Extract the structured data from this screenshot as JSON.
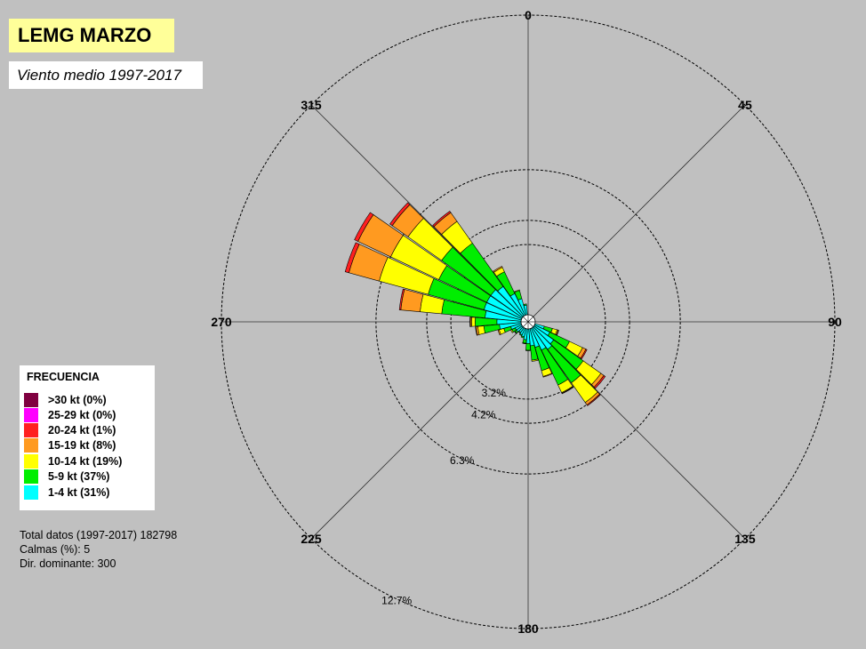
{
  "title": "LEMG MARZO",
  "subtitle": "Viento medio 1997-2017",
  "stats": {
    "total": "Total datos (1997-2017) 182798",
    "calms": "Calmas (%): 5",
    "dominant": "Dir. dominante:  300"
  },
  "legend": {
    "title": "FRECUENCIA",
    "items": [
      {
        "label": ">30 kt (0%)",
        "color": "#800040"
      },
      {
        "label": "25-29 kt (0%)",
        "color": "#ff00ff"
      },
      {
        "label": "20-24 kt (1%)",
        "color": "#ff2020"
      },
      {
        "label": "15-19 kt (8%)",
        "color": "#ff9a20"
      },
      {
        "label": "10-14 kt (19%)",
        "color": "#ffff00"
      },
      {
        "label": "5-9 kt (37%)",
        "color": "#00ee00"
      },
      {
        "label": "1-4 kt (31%)",
        "color": "#00ffff"
      }
    ]
  },
  "chart_data": {
    "type": "wind-rose",
    "title": "LEMG MARZO",
    "subtitle": "Viento medio 1997-2017",
    "direction_labels": [
      {
        "angle": 0,
        "label": "0"
      },
      {
        "angle": 45,
        "label": "45"
      },
      {
        "angle": 90,
        "label": "90"
      },
      {
        "angle": 135,
        "label": "135"
      },
      {
        "angle": 180,
        "label": "180"
      },
      {
        "angle": 225,
        "label": "225"
      },
      {
        "angle": 270,
        "label": "270"
      },
      {
        "angle": 315,
        "label": "315"
      }
    ],
    "rings": [
      {
        "percent": 3.2,
        "label": "3.2%"
      },
      {
        "percent": 4.2,
        "label": "4.2%"
      },
      {
        "percent": 6.3,
        "label": "6.3%"
      },
      {
        "percent": 12.7,
        "label": "12.7%"
      }
    ],
    "bin_width_deg": 10,
    "speed_classes": [
      "1-4 kt",
      "5-9 kt",
      "10-14 kt",
      "15-19 kt",
      "20-24 kt",
      "25-29 kt",
      ">30 kt"
    ],
    "colors": [
      "#00ffff",
      "#00ee00",
      "#ffff00",
      "#ff9a20",
      "#ff2020",
      "#ff00ff",
      "#800040"
    ],
    "calms_percent": 5,
    "dominant_direction": 300,
    "sectors": [
      {
        "dir": 110,
        "cumulative": [
          0.4,
          0.75,
          0.95,
          1.0,
          1.02,
          1.02,
          1.02
        ]
      },
      {
        "dir": 120,
        "cumulative": [
          0.7,
          1.6,
          2.2,
          2.35,
          2.4,
          2.4,
          2.4
        ]
      },
      {
        "dir": 130,
        "cumulative": [
          1.0,
          2.5,
          3.4,
          3.55,
          3.62,
          3.62,
          3.62
        ]
      },
      {
        "dir": 140,
        "cumulative": [
          1.1,
          2.8,
          3.8,
          3.92,
          3.96,
          3.96,
          3.96
        ]
      },
      {
        "dir": 150,
        "cumulative": [
          1.0,
          2.6,
          2.95,
          2.98,
          3.0,
          3.0,
          3.0
        ]
      },
      {
        "dir": 160,
        "cumulative": [
          0.8,
          1.8,
          2.05,
          2.08,
          2.08,
          2.08,
          2.08
        ]
      },
      {
        "dir": 170,
        "cumulative": [
          0.7,
          1.3,
          1.35,
          1.36,
          1.36,
          1.36,
          1.36
        ]
      },
      {
        "dir": 180,
        "cumulative": [
          0.6,
          0.88,
          0.9,
          0.9,
          0.9,
          0.9,
          0.9
        ]
      },
      {
        "dir": 190,
        "cumulative": [
          0.45,
          0.6,
          0.62,
          0.62,
          0.62,
          0.62,
          0.62
        ]
      },
      {
        "dir": 200,
        "cumulative": [
          0.35,
          0.4,
          0.4,
          0.4,
          0.4,
          0.4,
          0.4
        ]
      },
      {
        "dir": 210,
        "cumulative": [
          0.3,
          0.34,
          0.34,
          0.34,
          0.34,
          0.34,
          0.34
        ]
      },
      {
        "dir": 220,
        "cumulative": [
          0.25,
          0.28,
          0.28,
          0.28,
          0.28,
          0.28,
          0.28
        ]
      },
      {
        "dir": 230,
        "cumulative": [
          0.3,
          0.38,
          0.4,
          0.4,
          0.4,
          0.4,
          0.4
        ]
      },
      {
        "dir": 240,
        "cumulative": [
          0.3,
          0.45,
          0.5,
          0.5,
          0.5,
          0.5,
          0.5
        ]
      },
      {
        "dir": 250,
        "cumulative": [
          0.45,
          0.75,
          0.95,
          1.0,
          1.0,
          1.0,
          1.0
        ]
      },
      {
        "dir": 260,
        "cumulative": [
          0.9,
          1.55,
          1.8,
          1.88,
          1.9,
          1.9,
          1.9
        ]
      },
      {
        "dir": 270,
        "cumulative": [
          1.0,
          1.9,
          2.05,
          2.1,
          2.12,
          2.12,
          2.12
        ]
      },
      {
        "dir": 280,
        "cumulative": [
          1.5,
          3.3,
          4.2,
          5.0,
          5.06,
          5.06,
          5.06
        ]
      },
      {
        "dir": 290,
        "cumulative": [
          1.6,
          4.0,
          6.1,
          7.4,
          7.56,
          7.56,
          7.56
        ]
      },
      {
        "dir": 300,
        "cumulative": [
          1.6,
          3.8,
          6.0,
          7.5,
          7.66,
          7.66,
          7.66
        ]
      },
      {
        "dir": 310,
        "cumulative": [
          1.6,
          4.1,
          5.8,
          6.6,
          6.72,
          6.72,
          6.72
        ]
      },
      {
        "dir": 320,
        "cumulative": [
          1.5,
          3.7,
          4.8,
          5.25,
          5.32,
          5.32,
          5.32
        ]
      },
      {
        "dir": 330,
        "cumulative": [
          1.0,
          2.0,
          2.2,
          2.25,
          2.26,
          2.26,
          2.26
        ]
      },
      {
        "dir": 340,
        "cumulative": [
          0.7,
          1.05,
          1.08,
          1.08,
          1.08,
          1.08,
          1.08
        ]
      },
      {
        "dir": 350,
        "cumulative": [
          0.4,
          0.45,
          0.45,
          0.45,
          0.45,
          0.45,
          0.45
        ]
      }
    ]
  }
}
